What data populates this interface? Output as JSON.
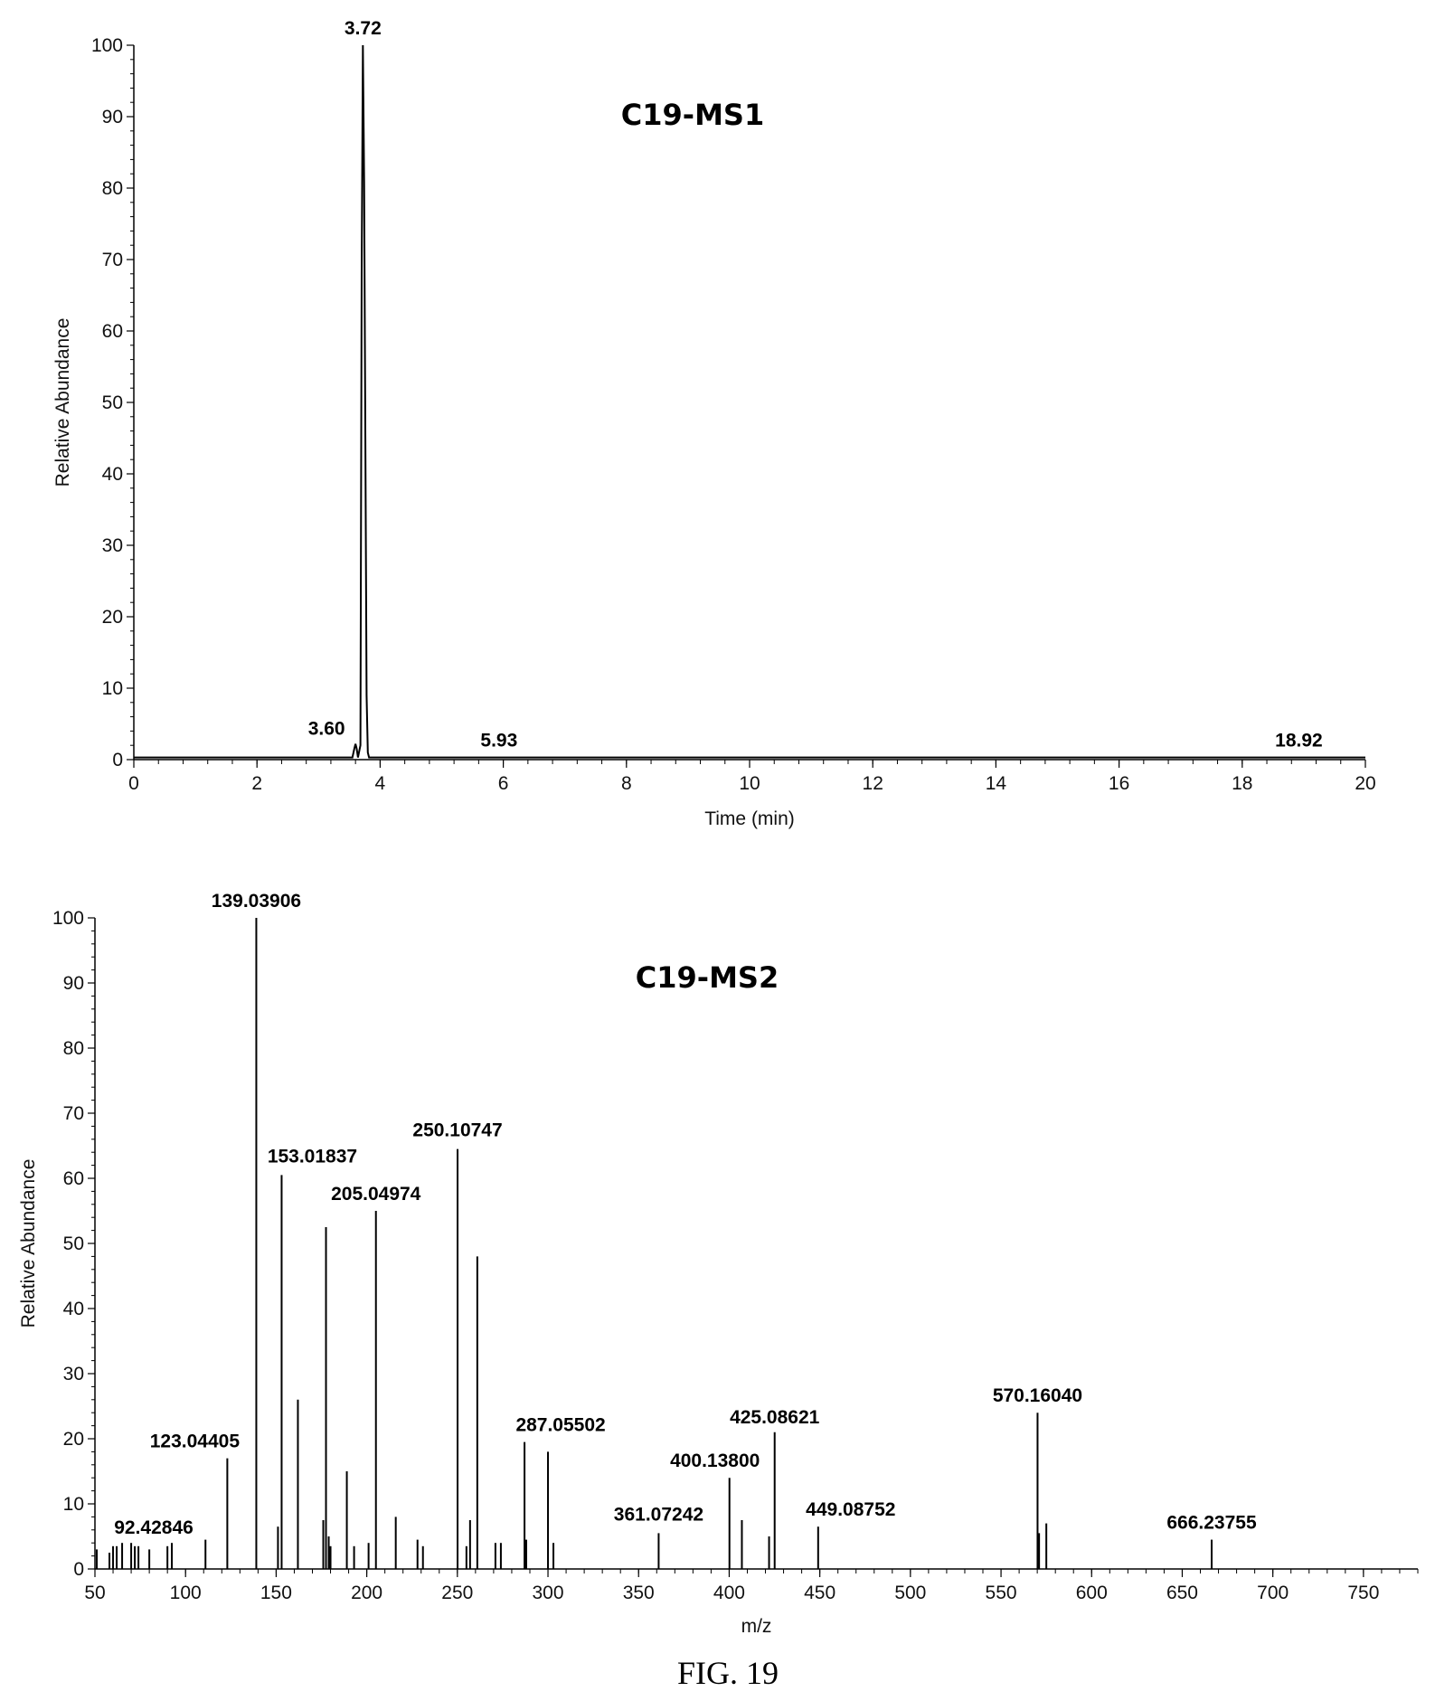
{
  "chart_data": [
    {
      "type": "line",
      "title": "C19-MS1",
      "xlabel": "Time (min)",
      "ylabel": "Relative Abundance",
      "xlim": [
        0,
        20
      ],
      "ylim": [
        0,
        100
      ],
      "xticks": [
        0,
        2,
        4,
        6,
        8,
        10,
        12,
        14,
        16,
        18,
        20
      ],
      "yticks": [
        0,
        10,
        20,
        30,
        40,
        50,
        60,
        70,
        80,
        90,
        100
      ],
      "series": [
        {
          "x": [
            0,
            3.55,
            3.58,
            3.6,
            3.62,
            3.64,
            3.68,
            3.7,
            3.72,
            3.74,
            3.76,
            3.78,
            3.8,
            3.82,
            3.85,
            20
          ],
          "y": [
            0.3,
            0.3,
            1.5,
            2.2,
            1.5,
            0.3,
            2,
            68,
            100,
            81,
            45,
            9,
            1,
            0.3,
            0.3,
            0.3
          ]
        }
      ],
      "peak_labels": [
        {
          "x": 3.72,
          "y": 100,
          "text": "3.72"
        },
        {
          "x": 3.6,
          "y": 2.2,
          "text": "3.60"
        },
        {
          "x": 5.93,
          "y": 0.3,
          "text": "5.93"
        },
        {
          "x": 18.92,
          "y": 0.3,
          "text": "18.92"
        }
      ]
    },
    {
      "type": "bar",
      "title": "C19-MS2",
      "xlabel": "m/z",
      "ylabel": "Relative Abundance",
      "xlim": [
        50,
        780
      ],
      "ylim": [
        0,
        100
      ],
      "xticks": [
        50,
        100,
        150,
        200,
        250,
        300,
        350,
        400,
        450,
        500,
        550,
        600,
        650,
        700,
        750
      ],
      "yticks": [
        0,
        10,
        20,
        30,
        40,
        50,
        60,
        70,
        80,
        90,
        100
      ],
      "peaks": {
        "mz": [
          51,
          58,
          60,
          62,
          65,
          70,
          72,
          74,
          80,
          90,
          92.42846,
          111,
          123.04405,
          139.03906,
          151,
          153.01837,
          162,
          176,
          177.5,
          179,
          180,
          189,
          193,
          201,
          205.04974,
          216,
          228,
          231,
          250.10747,
          255,
          257,
          261,
          271,
          274,
          287.05502,
          288,
          300,
          303,
          361.07242,
          400.138,
          407,
          422,
          425.08621,
          449.08752,
          570.1604,
          571,
          575,
          666.23755
        ],
        "intensity": [
          3,
          2.5,
          3.5,
          3.5,
          4,
          4,
          3.5,
          3.5,
          3,
          3.5,
          4,
          4.5,
          17,
          100,
          6.5,
          60.5,
          26,
          7.5,
          52.5,
          5,
          3.5,
          15,
          3.5,
          4,
          55,
          8,
          4.5,
          3.5,
          64.5,
          3.5,
          7.5,
          48,
          4,
          4,
          19.5,
          4.5,
          18,
          4,
          5.5,
          14,
          7.5,
          5,
          21,
          6.5,
          24,
          5.5,
          7,
          4.5
        ]
      },
      "peak_labels": [
        {
          "x": 139.03906,
          "y": 100,
          "text": "139.03906"
        },
        {
          "x": 250.10747,
          "y": 64.5,
          "text": "250.10747"
        },
        {
          "x": 153.01837,
          "y": 60.5,
          "text": "153.01837"
        },
        {
          "x": 205.04974,
          "y": 55,
          "text": "205.04974"
        },
        {
          "x": 287.05502,
          "y": 19.5,
          "text": "287.05502"
        },
        {
          "x": 123.04405,
          "y": 17,
          "text": "123.04405"
        },
        {
          "x": 425.08621,
          "y": 21,
          "text": "425.08621"
        },
        {
          "x": 570.1604,
          "y": 24,
          "text": "570.16040"
        },
        {
          "x": 400.138,
          "y": 14,
          "text": "400.13800"
        },
        {
          "x": 449.08752,
          "y": 6.5,
          "text": "449.08752"
        },
        {
          "x": 361.07242,
          "y": 5.5,
          "text": "361.07242"
        },
        {
          "x": 92.42846,
          "y": 4,
          "text": "92.42846"
        },
        {
          "x": 666.23755,
          "y": 4.5,
          "text": "666.23755"
        }
      ]
    }
  ],
  "figure_caption": "FIG. 19"
}
